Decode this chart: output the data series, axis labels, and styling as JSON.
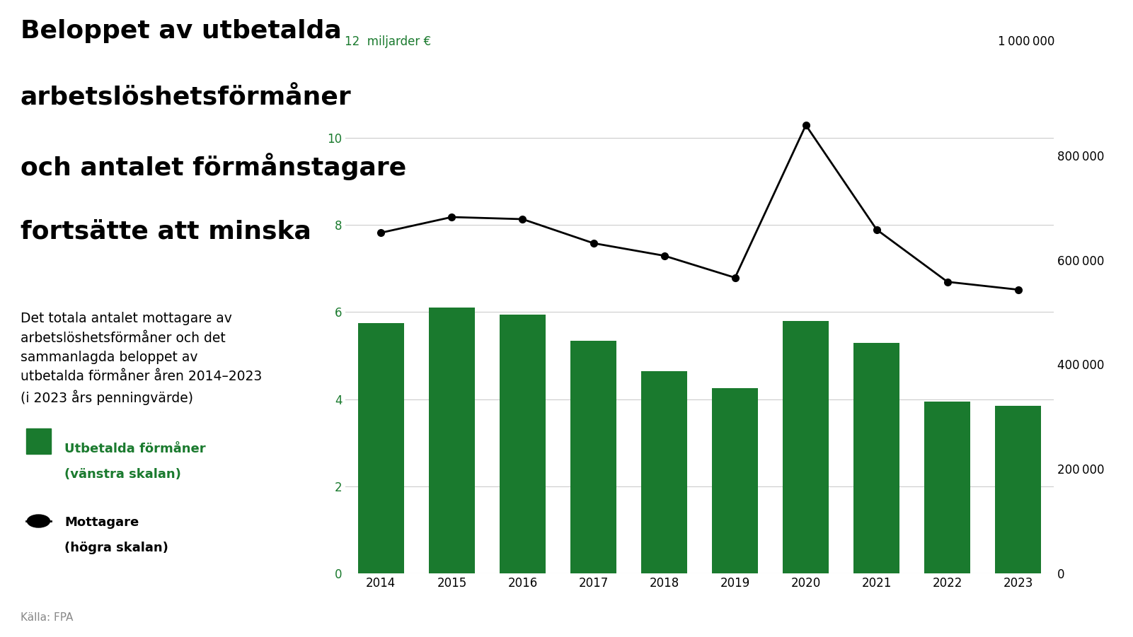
{
  "years": [
    2014,
    2015,
    2016,
    2017,
    2018,
    2019,
    2020,
    2021,
    2022,
    2023
  ],
  "bar_values": [
    5.75,
    6.1,
    5.95,
    5.35,
    4.65,
    4.25,
    5.8,
    5.3,
    3.95,
    3.85
  ],
  "line_values": [
    652000,
    682000,
    678000,
    632000,
    608000,
    566000,
    858000,
    658000,
    558000,
    543000
  ],
  "bar_color": "#1a7a2e",
  "line_color": "#000000",
  "left_axis_label": "miljarder €",
  "left_ylim": [
    0,
    12
  ],
  "right_ylim": [
    0,
    1000000
  ],
  "title_line1": "Beloppet av utbetalda",
  "title_line2": "arbetslöshetsförmåner",
  "title_line3": "och antalet förmånstagare",
  "title_line4": "fortsätte att minska",
  "subtitle": "Det totala antalet mottagare av\narbetslöshetsförmåner och det\nsammanlagda beloppet av\nutbetalda förmåner åren 2014–2023\n(i 2023 års penningvärde)",
  "legend_bar_label_line1": "Utbetalda förmåner",
  "legend_bar_label_line2": "(vänstra skalan)",
  "legend_line_label_line1": "Mottagare",
  "legend_line_label_line2": "(högra skalan)",
  "source_label": "Källa: FPA",
  "background_color": "#ffffff",
  "grid_color": "#cccccc",
  "left_label_color": "#1a7a2e",
  "title_fontsize": 26,
  "subtitle_fontsize": 13.5,
  "legend_fontsize": 13,
  "axis_fontsize": 12,
  "source_fontsize": 11
}
